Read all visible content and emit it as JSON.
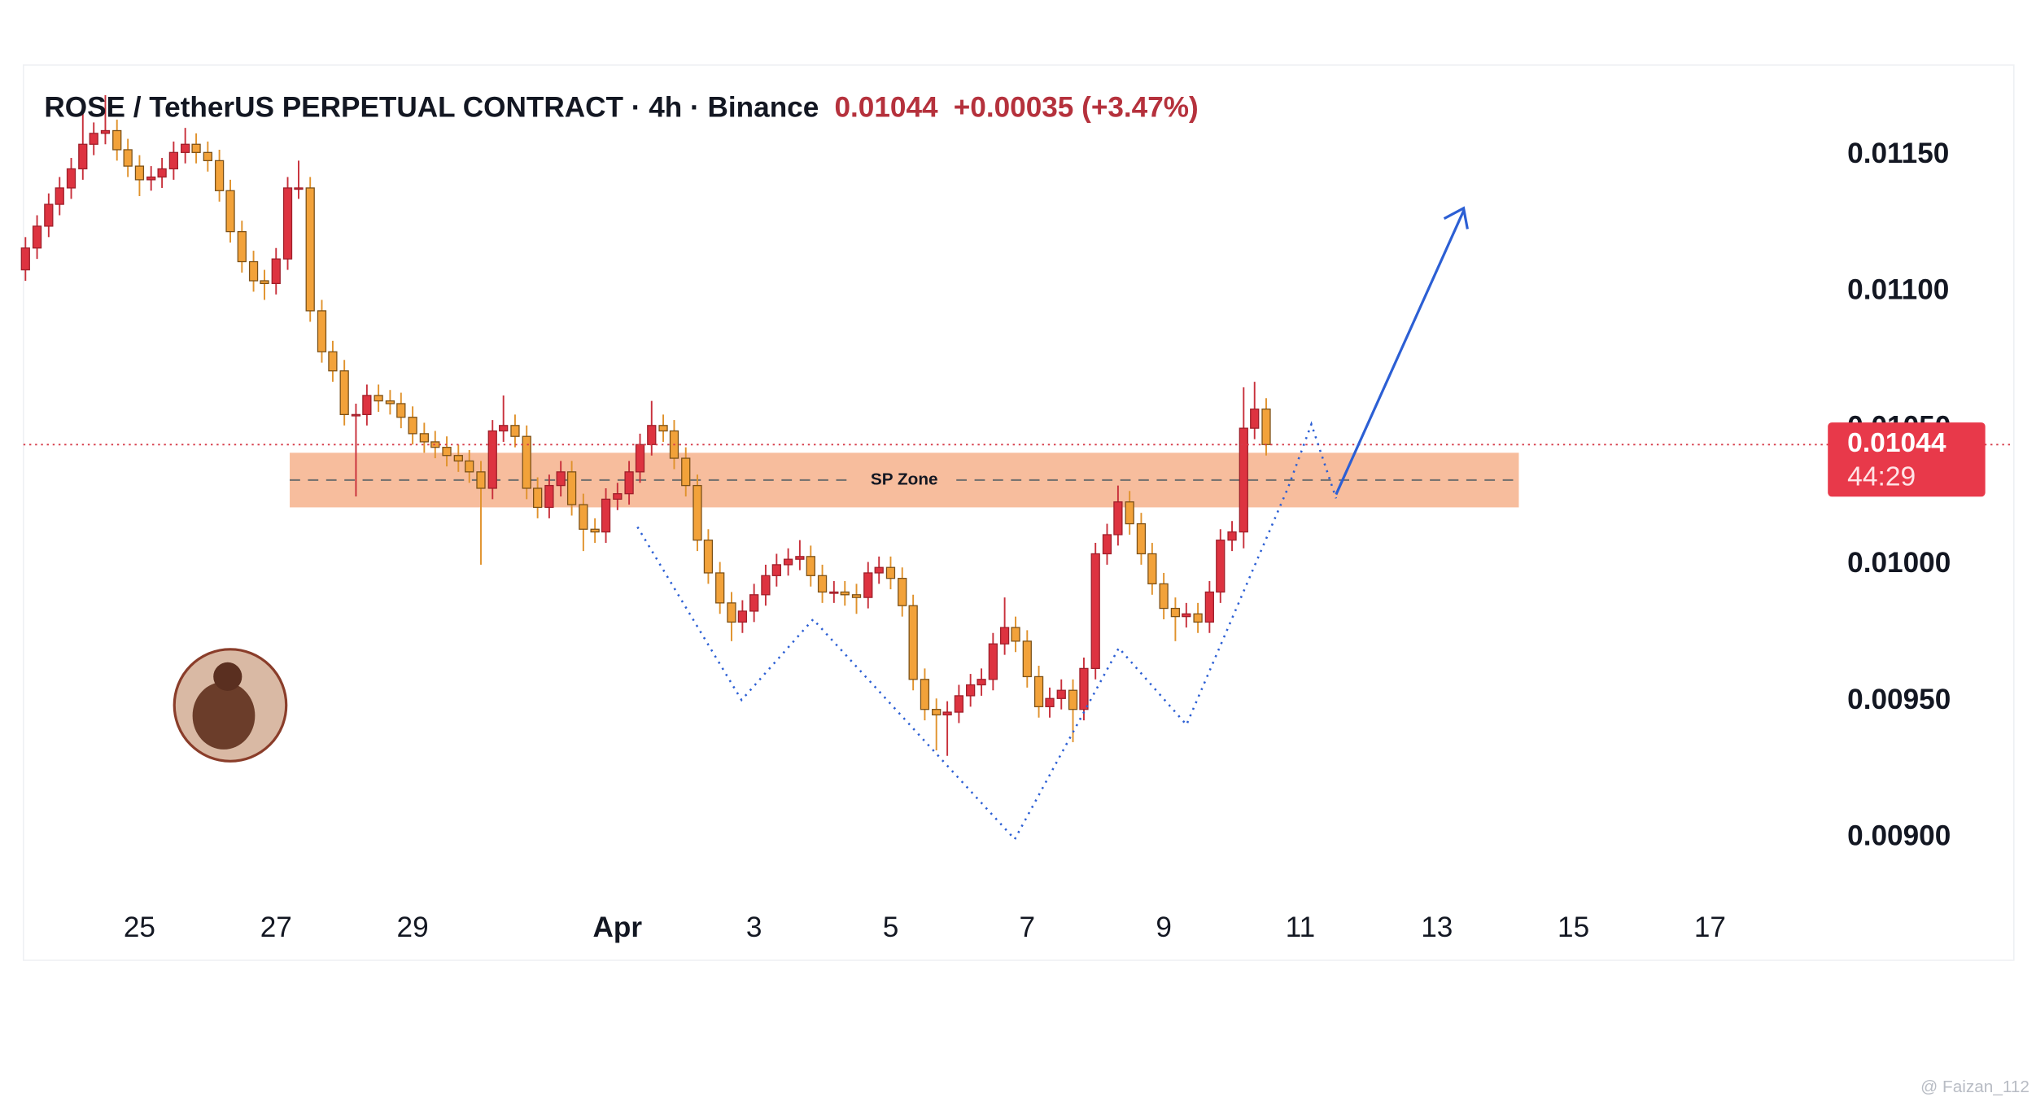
{
  "chart_data": {
    "type": "candlestick",
    "title": "ROSE / TetherUS PERPETUAL CONTRACT · 4h · Binance",
    "last_price": 0.01044,
    "change": "+0.00035 (+3.47%)",
    "countdown": "44:29",
    "watermark": "@ Faizan_112",
    "up_color": "#dd3340",
    "down_color": "#f2a23a",
    "x": [
      23.33,
      23.5,
      23.67,
      23.83,
      24,
      24.17,
      24.33,
      24.5,
      24.67,
      24.83,
      25,
      25.17,
      25.33,
      25.5,
      25.67,
      25.83,
      26,
      26.17,
      26.33,
      26.5,
      26.67,
      26.83,
      27,
      27.17,
      27.33,
      27.5,
      27.67,
      27.83,
      28,
      28.17,
      28.33,
      28.5,
      28.67,
      28.83,
      29,
      29.17,
      29.33,
      29.5,
      29.67,
      29.83,
      30,
      30.17,
      30.33,
      30.5,
      30.67,
      30.83,
      31,
      31.17,
      31.33,
      31.5,
      31.67,
      31.83,
      32,
      32.17,
      32.33,
      32.5,
      32.67,
      32.83,
      33,
      33.17,
      33.33,
      33.5,
      33.67,
      33.83,
      34,
      34.17,
      34.33,
      34.5,
      34.67,
      34.83,
      35,
      35.17,
      35.33,
      35.5,
      35.67,
      35.83,
      36,
      36.17,
      36.33,
      36.5,
      36.67,
      36.83,
      37,
      37.17,
      37.33,
      37.5,
      37.67,
      37.83,
      38,
      38.17,
      38.33,
      38.5,
      38.67,
      38.83,
      39,
      39.17,
      39.33,
      39.5,
      39.67,
      39.83,
      40,
      40.17,
      40.33,
      40.5,
      40.67,
      40.83,
      41,
      41.17,
      41.33,
      41.5
    ],
    "open": [
      0.01108,
      0.01116,
      0.01124,
      0.01132,
      0.01138,
      0.01145,
      0.01154,
      0.01158,
      0.01159,
      0.01152,
      0.01146,
      0.01141,
      0.01142,
      0.01145,
      0.01151,
      0.01154,
      0.01151,
      0.01148,
      0.01137,
      0.01122,
      0.01111,
      0.01104,
      0.01103,
      0.01112,
      0.01138,
      0.01138,
      0.01093,
      0.01078,
      0.01071,
      0.01055,
      0.01055,
      0.01062,
      0.0106,
      0.01059,
      0.01054,
      0.01048,
      0.01045,
      0.01043,
      0.0104,
      0.01038,
      0.01034,
      0.01028,
      0.01049,
      0.01051,
      0.01047,
      0.01028,
      0.01021,
      0.01029,
      0.01034,
      0.01022,
      0.01013,
      0.01012,
      0.01024,
      0.01026,
      0.01034,
      0.01044,
      0.01051,
      0.01049,
      0.01039,
      0.01029,
      0.01009,
      0.00997,
      0.00986,
      0.00979,
      0.00983,
      0.00989,
      0.00996,
      0.01,
      0.01002,
      0.01003,
      0.00996,
      0.0099,
      0.0099,
      0.00989,
      0.00988,
      0.00997,
      0.00999,
      0.00995,
      0.00985,
      0.00958,
      0.00947,
      0.00945,
      0.00946,
      0.00952,
      0.00956,
      0.00958,
      0.00971,
      0.00977,
      0.00972,
      0.00959,
      0.00948,
      0.00951,
      0.00954,
      0.00947,
      0.00962,
      0.01004,
      0.01011,
      0.01023,
      0.01015,
      0.01004,
      0.00993,
      0.00984,
      0.00981,
      0.00982,
      0.00979,
      0.0099,
      0.01009,
      0.01012,
      0.0105,
      0.01057
    ],
    "high": [
      0.0112,
      0.01128,
      0.01136,
      0.01142,
      0.01149,
      0.0117,
      0.01162,
      0.01172,
      0.01163,
      0.01156,
      0.0115,
      0.01146,
      0.01149,
      0.01155,
      0.0116,
      0.01158,
      0.01155,
      0.01152,
      0.01141,
      0.01126,
      0.01115,
      0.01108,
      0.01116,
      0.01142,
      0.01148,
      0.01142,
      0.01097,
      0.01082,
      0.01075,
      0.01059,
      0.01066,
      0.01066,
      0.01064,
      0.01063,
      0.01058,
      0.01052,
      0.01049,
      0.01047,
      0.01044,
      0.01042,
      0.01038,
      0.01053,
      0.01062,
      0.01055,
      0.01051,
      0.01032,
      0.01033,
      0.01038,
      0.01038,
      0.01026,
      0.01017,
      0.01028,
      0.0103,
      0.01038,
      0.01048,
      0.0106,
      0.01055,
      0.01053,
      0.01043,
      0.01033,
      0.01013,
      0.01001,
      0.0099,
      0.00987,
      0.00993,
      0.01,
      0.01004,
      0.01006,
      0.01009,
      0.01007,
      0.01,
      0.00994,
      0.00994,
      0.00993,
      0.01001,
      0.01003,
      0.01003,
      0.00999,
      0.00989,
      0.00962,
      0.00951,
      0.0095,
      0.00956,
      0.0096,
      0.00962,
      0.00975,
      0.00988,
      0.00981,
      0.00976,
      0.00963,
      0.00955,
      0.00958,
      0.00958,
      0.00966,
      0.01008,
      0.01015,
      0.01029,
      0.01027,
      0.01019,
      0.01008,
      0.00997,
      0.00988,
      0.00986,
      0.00986,
      0.00994,
      0.01013,
      0.01016,
      0.01065,
      0.01067,
      0.01061
    ],
    "low": [
      0.01104,
      0.01112,
      0.0112,
      0.01128,
      0.01134,
      0.01141,
      0.0115,
      0.01154,
      0.01148,
      0.01142,
      0.01135,
      0.01137,
      0.01138,
      0.01141,
      0.01147,
      0.01147,
      0.01144,
      0.01133,
      0.01118,
      0.01107,
      0.011,
      0.01097,
      0.01099,
      0.01108,
      0.01134,
      0.01089,
      0.01074,
      0.01067,
      0.01051,
      0.01025,
      0.01051,
      0.01056,
      0.01055,
      0.0105,
      0.01044,
      0.01041,
      0.01039,
      0.01036,
      0.01034,
      0.0103,
      0.01,
      0.01024,
      0.01045,
      0.01043,
      0.01024,
      0.01017,
      0.01017,
      0.01025,
      0.01018,
      0.01005,
      0.01008,
      0.01008,
      0.0102,
      0.01022,
      0.0103,
      0.0104,
      0.01045,
      0.01035,
      0.01025,
      0.01005,
      0.00993,
      0.00982,
      0.00972,
      0.00975,
      0.00979,
      0.00985,
      0.00992,
      0.00996,
      0.00998,
      0.00992,
      0.00986,
      0.00986,
      0.00985,
      0.00982,
      0.00984,
      0.00993,
      0.00991,
      0.00981,
      0.00954,
      0.00943,
      0.00932,
      0.0093,
      0.00942,
      0.00948,
      0.00952,
      0.00954,
      0.00967,
      0.00968,
      0.00955,
      0.00944,
      0.00944,
      0.00947,
      0.00935,
      0.00943,
      0.00958,
      0.01,
      0.01007,
      0.01011,
      0.01,
      0.00989,
      0.0098,
      0.00972,
      0.00977,
      0.00975,
      0.00975,
      0.00986,
      0.01005,
      0.01006,
      0.01046,
      0.0104
    ],
    "close": [
      0.01116,
      0.01124,
      0.01132,
      0.01138,
      0.01145,
      0.01154,
      0.01158,
      0.01159,
      0.01152,
      0.01146,
      0.01141,
      0.01142,
      0.01145,
      0.01151,
      0.01154,
      0.01151,
      0.01148,
      0.01137,
      0.01122,
      0.01111,
      0.01104,
      0.01103,
      0.01112,
      0.01138,
      0.01138,
      0.01093,
      0.01078,
      0.01071,
      0.01055,
      0.01055,
      0.01062,
      0.0106,
      0.01059,
      0.01054,
      0.01048,
      0.01045,
      0.01043,
      0.0104,
      0.01038,
      0.01034,
      0.01028,
      0.01049,
      0.01051,
      0.01047,
      0.01028,
      0.01021,
      0.01029,
      0.01034,
      0.01022,
      0.01013,
      0.01012,
      0.01024,
      0.01026,
      0.01034,
      0.01044,
      0.01051,
      0.01049,
      0.01039,
      0.01029,
      0.01009,
      0.00997,
      0.00986,
      0.00979,
      0.00983,
      0.00989,
      0.00996,
      0.01,
      0.01002,
      0.01003,
      0.00996,
      0.0099,
      0.0099,
      0.00989,
      0.00988,
      0.00997,
      0.00999,
      0.00995,
      0.00985,
      0.00958,
      0.00947,
      0.00945,
      0.00946,
      0.00952,
      0.00956,
      0.00958,
      0.00971,
      0.00977,
      0.00972,
      0.00959,
      0.00948,
      0.00951,
      0.00954,
      0.00947,
      0.00962,
      0.01004,
      0.01011,
      0.01023,
      0.01015,
      0.01004,
      0.00993,
      0.00984,
      0.00981,
      0.00982,
      0.00979,
      0.0099,
      0.01009,
      0.01012,
      0.0105,
      0.01057,
      0.01044
    ],
    "xlim": [
      23.3,
      49.63
    ],
    "xticks": [
      25,
      27,
      29,
      {
        "value": 32,
        "label": "Apr"
      },
      {
        "value": 34,
        "label": "3"
      },
      {
        "value": 36,
        "label": "5"
      },
      {
        "value": 38,
        "label": "7"
      },
      {
        "value": 40,
        "label": "9"
      },
      {
        "value": 42,
        "label": "11"
      },
      {
        "value": 44,
        "label": "13"
      },
      {
        "value": 46,
        "label": "15"
      },
      {
        "value": 48,
        "label": "17"
      }
    ],
    "ylim": [
      0.00878,
      0.01183
    ],
    "yticks": [
      {
        "value": 0.0115,
        "label": "0.01150"
      },
      {
        "value": 0.011,
        "label": "0.01100"
      },
      {
        "value": 0.0105,
        "label": "0.01050"
      },
      {
        "value": 0.01,
        "label": "0.01000"
      },
      {
        "value": 0.0095,
        "label": "0.00950"
      },
      {
        "value": 0.009,
        "label": "0.00900"
      }
    ],
    "zone": {
      "label": "SP Zone",
      "x0": 27.2,
      "x1": 45.2,
      "y0": 0.01021,
      "y1": 0.01041
    }
  }
}
